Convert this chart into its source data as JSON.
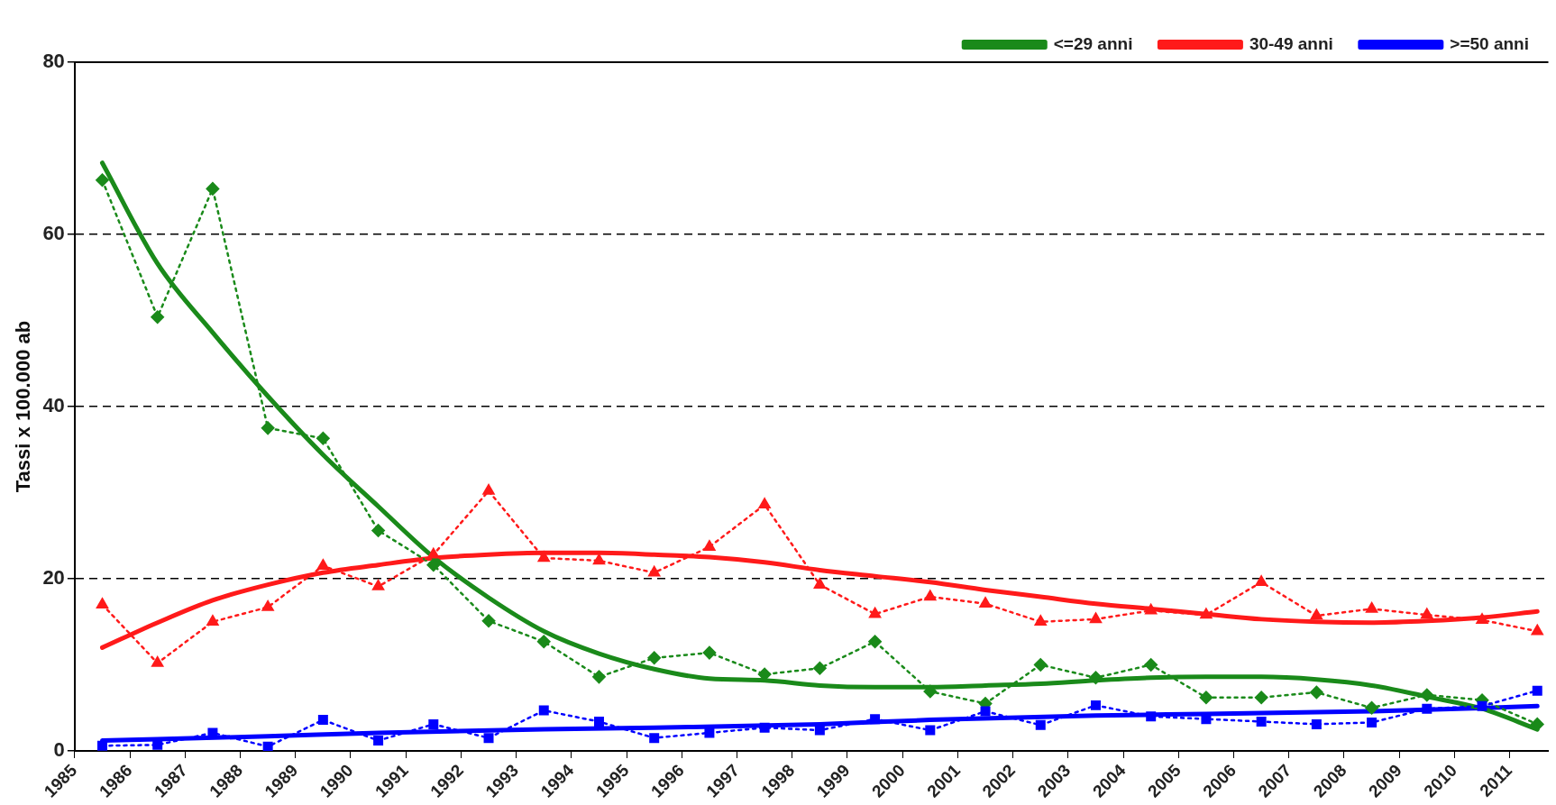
{
  "chart_data": {
    "type": "line",
    "ylabel": "Tassi x 100.000 ab",
    "x": [
      1985.5,
      1986.5,
      1987.5,
      1988.5,
      1989.5,
      1990.5,
      1991.5,
      1992.5,
      1993.5,
      1994.5,
      1995.5,
      1996.5,
      1997.5,
      1998.5,
      1999.5,
      2000.5,
      2001.5,
      2002.5,
      2003.5,
      2004.5,
      2005.5,
      2006.5,
      2007.5,
      2008.5,
      2009.5,
      2010.5,
      2011.5
    ],
    "xlim": [
      1985,
      2011.7
    ],
    "xticks": [
      1985,
      1986,
      1987,
      1988,
      1989,
      1990,
      1991,
      1992,
      1993,
      1994,
      1995,
      1996,
      1997,
      1998,
      1999,
      2000,
      2001,
      2002,
      2003,
      2004,
      2005,
      2006,
      2007,
      2008,
      2009,
      2010,
      2011
    ],
    "ylim": [
      0,
      80
    ],
    "yticks": [
      0,
      20,
      40,
      60,
      80
    ],
    "grid": "y",
    "legend": "top right",
    "series": [
      {
        "color": "#1a8a1a",
        "marker": "diamond",
        "line_style": "dotted",
        "values": [
          66.3,
          50.4,
          65.3,
          37.5,
          36.3,
          25.6,
          21.6,
          15.1,
          12.7,
          8.6,
          10.8,
          11.4,
          8.9,
          9.6,
          12.7,
          6.9,
          5.5,
          10.0,
          8.5,
          10.0,
          6.2,
          6.2,
          6.8,
          5.0,
          6.5,
          5.9,
          3.1
        ]
      },
      {
        "color": "#ff1a1a",
        "marker": "triangle",
        "line_style": "dotted",
        "values": [
          17.0,
          10.2,
          15.0,
          16.7,
          21.5,
          19.1,
          22.8,
          30.2,
          22.4,
          22.1,
          20.7,
          23.7,
          28.6,
          19.3,
          15.9,
          17.9,
          17.1,
          15.0,
          15.3,
          16.3,
          15.8,
          19.6,
          15.7,
          16.5,
          15.8,
          15.2,
          13.9
        ]
      },
      {
        "color": "#0000ff",
        "marker": "square",
        "line_style": "dotted",
        "values": [
          0.6,
          0.7,
          2.1,
          0.5,
          3.6,
          1.2,
          3.1,
          1.5,
          4.7,
          3.4,
          1.5,
          2.1,
          2.7,
          2.4,
          3.7,
          2.4,
          4.6,
          3.0,
          5.3,
          4.0,
          3.7,
          3.4,
          3.1,
          3.3,
          4.9,
          5.2,
          7.0
        ]
      },
      {
        "name": "<=29 anni",
        "color": "#1a8a1a",
        "marker": "none",
        "line_style": "solid",
        "values": [
          68.3,
          56.6,
          48.6,
          41.2,
          34.4,
          28.4,
          22.5,
          17.8,
          13.9,
          11.3,
          9.5,
          8.4,
          8.2,
          7.6,
          7.4,
          7.4,
          7.6,
          7.8,
          8.2,
          8.5,
          8.6,
          8.6,
          8.3,
          7.6,
          6.3,
          4.9,
          2.5
        ]
      },
      {
        "name": "30-49 anni",
        "color": "#ff1a1a",
        "marker": "none",
        "line_style": "solid",
        "values": [
          12.0,
          14.9,
          17.5,
          19.3,
          20.7,
          21.6,
          22.4,
          22.8,
          23.0,
          23.0,
          22.8,
          22.5,
          21.9,
          21.0,
          20.3,
          19.6,
          18.7,
          17.9,
          17.1,
          16.5,
          15.9,
          15.3,
          15.0,
          14.9,
          15.1,
          15.5,
          16.2
        ]
      },
      {
        "name": ">=50 anni",
        "color": "#0000ff",
        "marker": "none",
        "line_style": "solid",
        "x": [
          1985.5,
          1988.5,
          1990.5,
          1993.5,
          1995.5,
          1998.5,
          2000.5,
          2003.5,
          2005.5,
          2008.5,
          2011.5
        ],
        "values": [
          1.2,
          1.7,
          2.1,
          2.5,
          2.7,
          3.1,
          3.6,
          4.1,
          4.3,
          4.6,
          5.2
        ]
      }
    ]
  }
}
